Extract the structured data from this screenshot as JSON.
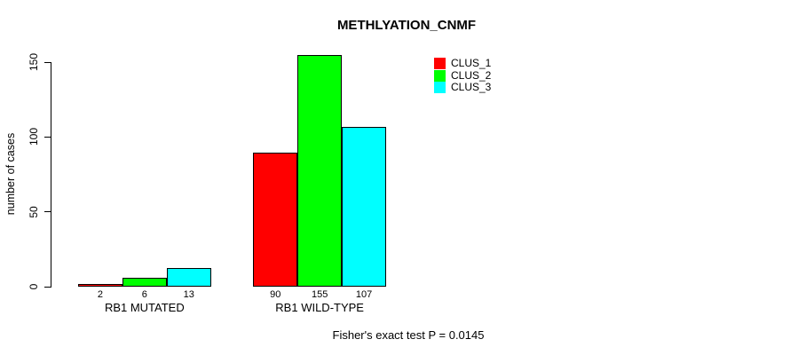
{
  "title": "METHLYATION_CNMF",
  "footer": "Fisher's exact test P = 0.0145",
  "legend": {
    "items": [
      {
        "label": "CLUS_1",
        "color": "#ff0000"
      },
      {
        "label": "CLUS_2",
        "color": "#00ff00"
      },
      {
        "label": "CLUS_3",
        "color": "#00ffff"
      }
    ]
  },
  "chart_data": {
    "type": "bar",
    "title": "METHLYATION_CNMF",
    "xlabel": "",
    "ylabel": "number of cases",
    "categories": [
      "RB1 MUTATED",
      "RB1 WILD-TYPE"
    ],
    "series": [
      {
        "name": "CLUS_1",
        "color": "#ff0000",
        "values": [
          2,
          90
        ]
      },
      {
        "name": "CLUS_2",
        "color": "#00ff00",
        "values": [
          6,
          155
        ]
      },
      {
        "name": "CLUS_3",
        "color": "#00ffff",
        "values": [
          13,
          107
        ]
      }
    ],
    "yticks": [
      0,
      50,
      100,
      150
    ],
    "ylim": [
      0,
      155
    ],
    "grid": false,
    "legend_position": "top-right",
    "bar_value_labels": [
      [
        2,
        6,
        13
      ],
      [
        90,
        155,
        107
      ]
    ],
    "annotation": "Fisher's exact test P = 0.0145"
  }
}
